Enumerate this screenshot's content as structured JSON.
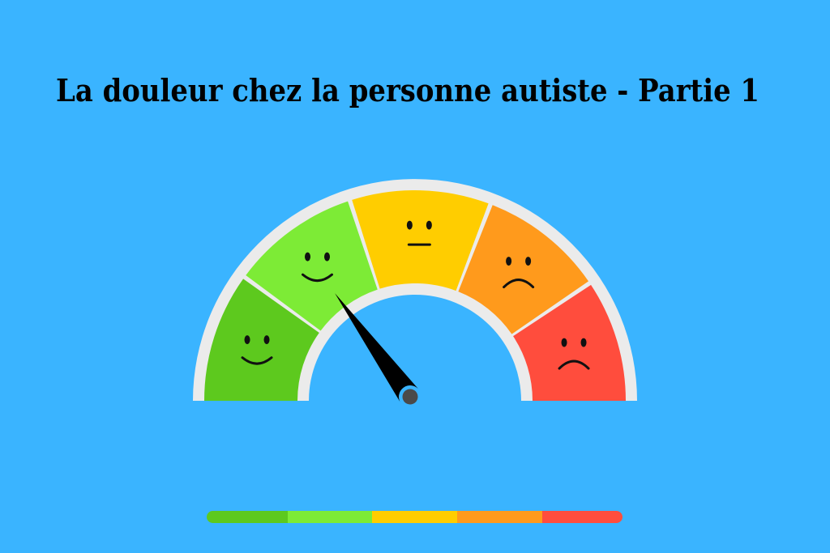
{
  "title": "La douleur chez la personne autiste - Partie 1",
  "colors": {
    "background": "#3AB4FF",
    "track": "#EBEBEB",
    "needle": "#000000",
    "needle_hub": "#4A4A4A",
    "face_features": "#111111"
  },
  "gauge": {
    "segments": [
      {
        "level": "very-happy",
        "face": "smile",
        "color": "#5DC91E"
      },
      {
        "level": "happy",
        "face": "smile",
        "color": "#7DEB36"
      },
      {
        "level": "neutral",
        "face": "neutral",
        "color": "#FFCD00"
      },
      {
        "level": "sad",
        "face": "frown",
        "color": "#FF9A1C"
      },
      {
        "level": "very-sad",
        "face": "frown",
        "color": "#FF4D3D"
      }
    ],
    "needle_value_percent": 30
  }
}
